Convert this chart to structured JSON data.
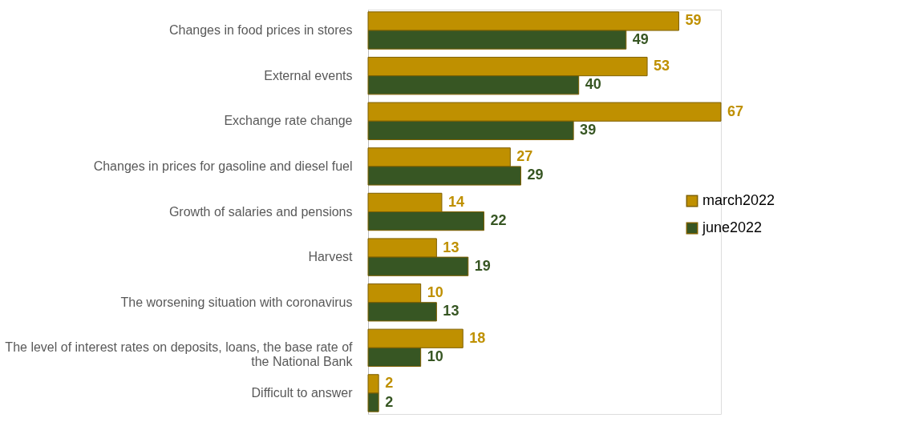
{
  "chart_data": {
    "type": "bar",
    "orientation": "horizontal",
    "data_labels": true,
    "legend": "right",
    "grid": false,
    "categories": [
      "Changes in food prices in stores",
      "External events",
      "Exchange rate change",
      "Changes in prices for gasoline and diesel fuel",
      "Growth of salaries and pensions",
      "Harvest",
      "The worsening situation with coronavirus",
      "The level of interest rates on deposits, loans, the base rate of the National Bank",
      "Difficult to answer"
    ],
    "series": [
      {
        "name": "march2022",
        "color": "#bf9000",
        "values": [
          59,
          53,
          67,
          27,
          14,
          13,
          10,
          18,
          2
        ]
      },
      {
        "name": "june2022",
        "color": "#375623",
        "values": [
          49,
          40,
          39,
          29,
          22,
          19,
          13,
          10,
          2
        ]
      }
    ]
  }
}
